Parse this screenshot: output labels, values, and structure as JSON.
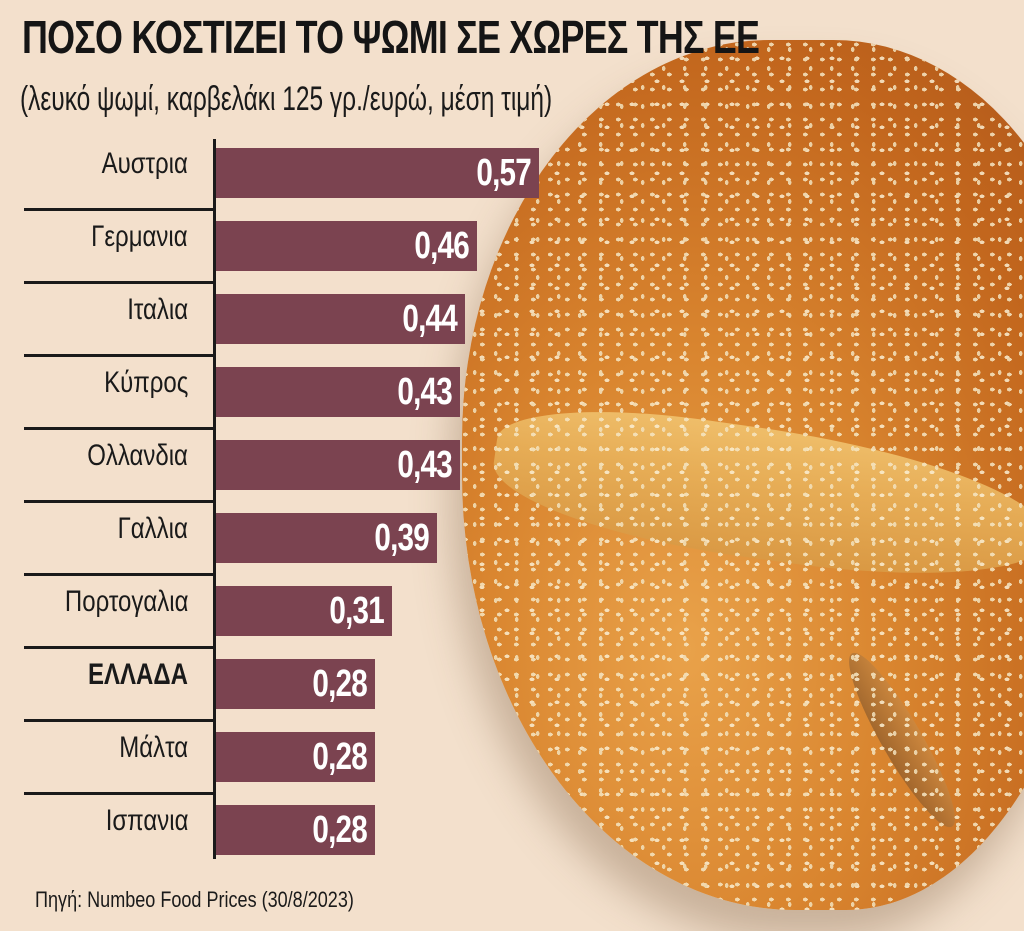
{
  "header": {
    "title": "ΠΟΣΟ ΚΟΣΤΙΖΕΙ ΤΟ ΨΩΜΙ ΣΕ ΧΩΡΕΣ ΤΗΣ ΕΕ",
    "subtitle": "(λευκό ψωμί, καρβελάκι 125 γρ./ευρώ, μέση τιμή)"
  },
  "rows": [
    {
      "label": "Αυστρια",
      "value": "0,57"
    },
    {
      "label": "Γερμανια",
      "value": "0,46"
    },
    {
      "label": "Ιταλια",
      "value": "0,44"
    },
    {
      "label": "Κύπρος",
      "value": "0,43"
    },
    {
      "label": "Ολλανδια",
      "value": "0,43"
    },
    {
      "label": "Γαλλια",
      "value": "0,39"
    },
    {
      "label": "Πορτογαλια",
      "value": "0,31"
    },
    {
      "label": "ΕΛΛΑΔΑ",
      "value": "0,28"
    },
    {
      "label": "Μάλτα",
      "value": "0,28"
    },
    {
      "label": "Ισπανια",
      "value": "0,28"
    }
  ],
  "source": "Πηγή: Numbeo Food Prices (30/8/2023)",
  "colors": {
    "background": "#f3e0cc",
    "bar": "#7b4350",
    "value_text": "#ffffff",
    "text": "#1a1a1a"
  },
  "chart_data": {
    "type": "bar",
    "orientation": "horizontal",
    "title": "ΠΟΣΟ ΚΟΣΤΙΖΕΙ ΤΟ ΨΩΜΙ ΣΕ ΧΩΡΕΣ ΤΗΣ ΕΕ",
    "subtitle": "(λευκό ψωμί, καρβελάκι 125 γρ./ευρώ, μέση τιμή)",
    "categories": [
      "Αυστρια",
      "Γερμανια",
      "Ιταλια",
      "Κύπρος",
      "Ολλανδια",
      "Γαλλια",
      "Πορτογαλια",
      "ΕΛΛΑΔΑ",
      "Μάλτα",
      "Ισπανια"
    ],
    "values": [
      0.57,
      0.46,
      0.44,
      0.43,
      0.43,
      0.39,
      0.31,
      0.28,
      0.28,
      0.28
    ],
    "xlabel": "",
    "ylabel": "",
    "unit": "ευρώ",
    "highlighted_category": "ΕΛΛΑΔΑ",
    "data_labels": true,
    "grid": false,
    "legend": null,
    "source": "Πηγή: Numbeo Food Prices (30/8/2023)"
  }
}
